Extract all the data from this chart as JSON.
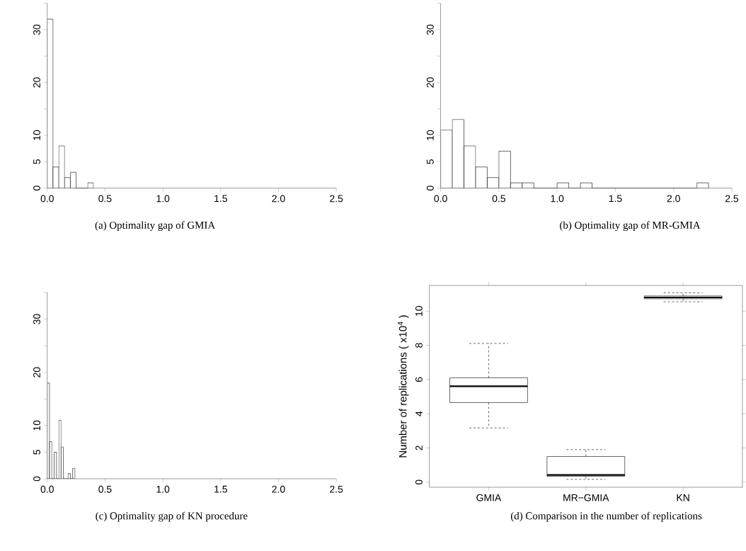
{
  "chart_data": [
    {
      "type": "histogram",
      "title": "(a) Optimality gap of GMIA",
      "color": "#ffffff",
      "bins": [
        0,
        0.05,
        0.1,
        0.15,
        0.2,
        0.25,
        0.3,
        0.35,
        0.4
      ],
      "values": [
        32,
        4,
        8,
        2,
        3,
        0,
        0,
        1
      ],
      "xlim": [
        0,
        2.5
      ],
      "ylim": [
        0,
        35
      ],
      "xticks": [
        {
          "value": 0,
          "label": "0.0"
        },
        {
          "value": 0.5,
          "label": "0.5"
        },
        {
          "value": 1,
          "label": "1.0"
        },
        {
          "value": 1.5,
          "label": "1.5"
        },
        {
          "value": 2,
          "label": "2.0"
        },
        {
          "value": 2.5,
          "label": "2.5"
        }
      ],
      "yticks": [
        0,
        5,
        10,
        {
          "value": 15,
          "label": null
        },
        20,
        {
          "value": 25,
          "label": null
        },
        30,
        {
          "value": 35,
          "label": null
        }
      ]
    },
    {
      "type": "histogram",
      "title": "(b) Optimality gap of MR-GMIA",
      "color": "#ffffff",
      "bins": [
        0,
        0.1,
        0.2,
        0.3,
        0.4,
        0.5,
        0.6,
        0.7,
        0.8,
        0.9,
        1.0,
        1.1,
        1.2,
        1.3,
        1.4,
        1.5,
        1.6,
        1.7,
        1.8,
        1.9,
        2.0,
        2.1,
        2.2,
        2.3
      ],
      "values": [
        11,
        13,
        8,
        4,
        2,
        7,
        1,
        1,
        0,
        0,
        1,
        0,
        1,
        0,
        0,
        0,
        0,
        0,
        0,
        0,
        0,
        0,
        1
      ],
      "xlim": [
        0,
        2.5
      ],
      "ylim": [
        0,
        35
      ],
      "xticks": [
        {
          "value": 0,
          "label": "0.0"
        },
        {
          "value": 0.5,
          "label": "0.5"
        },
        {
          "value": 1,
          "label": "1.0"
        },
        {
          "value": 1.5,
          "label": "1.5"
        },
        {
          "value": 2,
          "label": "2.0"
        },
        {
          "value": 2.5,
          "label": "2.5"
        }
      ],
      "yticks": [
        0,
        5,
        10,
        {
          "value": 15,
          "label": null
        },
        20,
        {
          "value": 25,
          "label": null
        },
        30,
        {
          "value": 35,
          "label": null
        }
      ]
    },
    {
      "type": "histogram",
      "title": "(c) Optimality gap of KN procedure",
      "color": "#ffffff",
      "bins": [
        0,
        0.02,
        0.04,
        0.06,
        0.08,
        0.1,
        0.12,
        0.14,
        0.16,
        0.18,
        0.2,
        0.22,
        0.24
      ],
      "values": [
        18,
        7,
        0,
        5,
        0,
        11,
        6,
        0,
        0,
        1,
        0,
        2
      ],
      "xlim": [
        0,
        2.5
      ],
      "ylim": [
        0,
        35
      ],
      "xticks": [
        {
          "value": 0,
          "label": "0.0"
        },
        {
          "value": 0.5,
          "label": "0.5"
        },
        {
          "value": 1,
          "label": "1.0"
        },
        {
          "value": 1.5,
          "label": "1.5"
        },
        {
          "value": 2,
          "label": "2.0"
        },
        {
          "value": 2.5,
          "label": "2.5"
        }
      ],
      "yticks": [
        0,
        5,
        10,
        {
          "value": 15,
          "label": null
        },
        20,
        {
          "value": 25,
          "label": null
        },
        30,
        {
          "value": 35,
          "label": null
        }
      ]
    },
    {
      "type": "box",
      "title": "(d) Comparison in the number of replications",
      "ylabel": "Number of replications  ( x10$^{4}$ )",
      "categories": [
        "GMIA",
        "MR−GMIA",
        "KN"
      ],
      "boxes": [
        {
          "low": 3.17,
          "q1": 4.65,
          "median": 5.61,
          "q3": 6.1,
          "high": 8.11
        },
        {
          "low": 0.16,
          "q1": 0.34,
          "median": 0.42,
          "q3": 1.5,
          "high": 1.9
        },
        {
          "low": 10.55,
          "q1": 10.72,
          "median": 10.8,
          "q3": 10.89,
          "high": 11.07
        }
      ],
      "ylim": [
        -0.3,
        11.5
      ],
      "yticks": [
        0,
        2,
        4,
        6,
        8,
        10
      ]
    }
  ]
}
